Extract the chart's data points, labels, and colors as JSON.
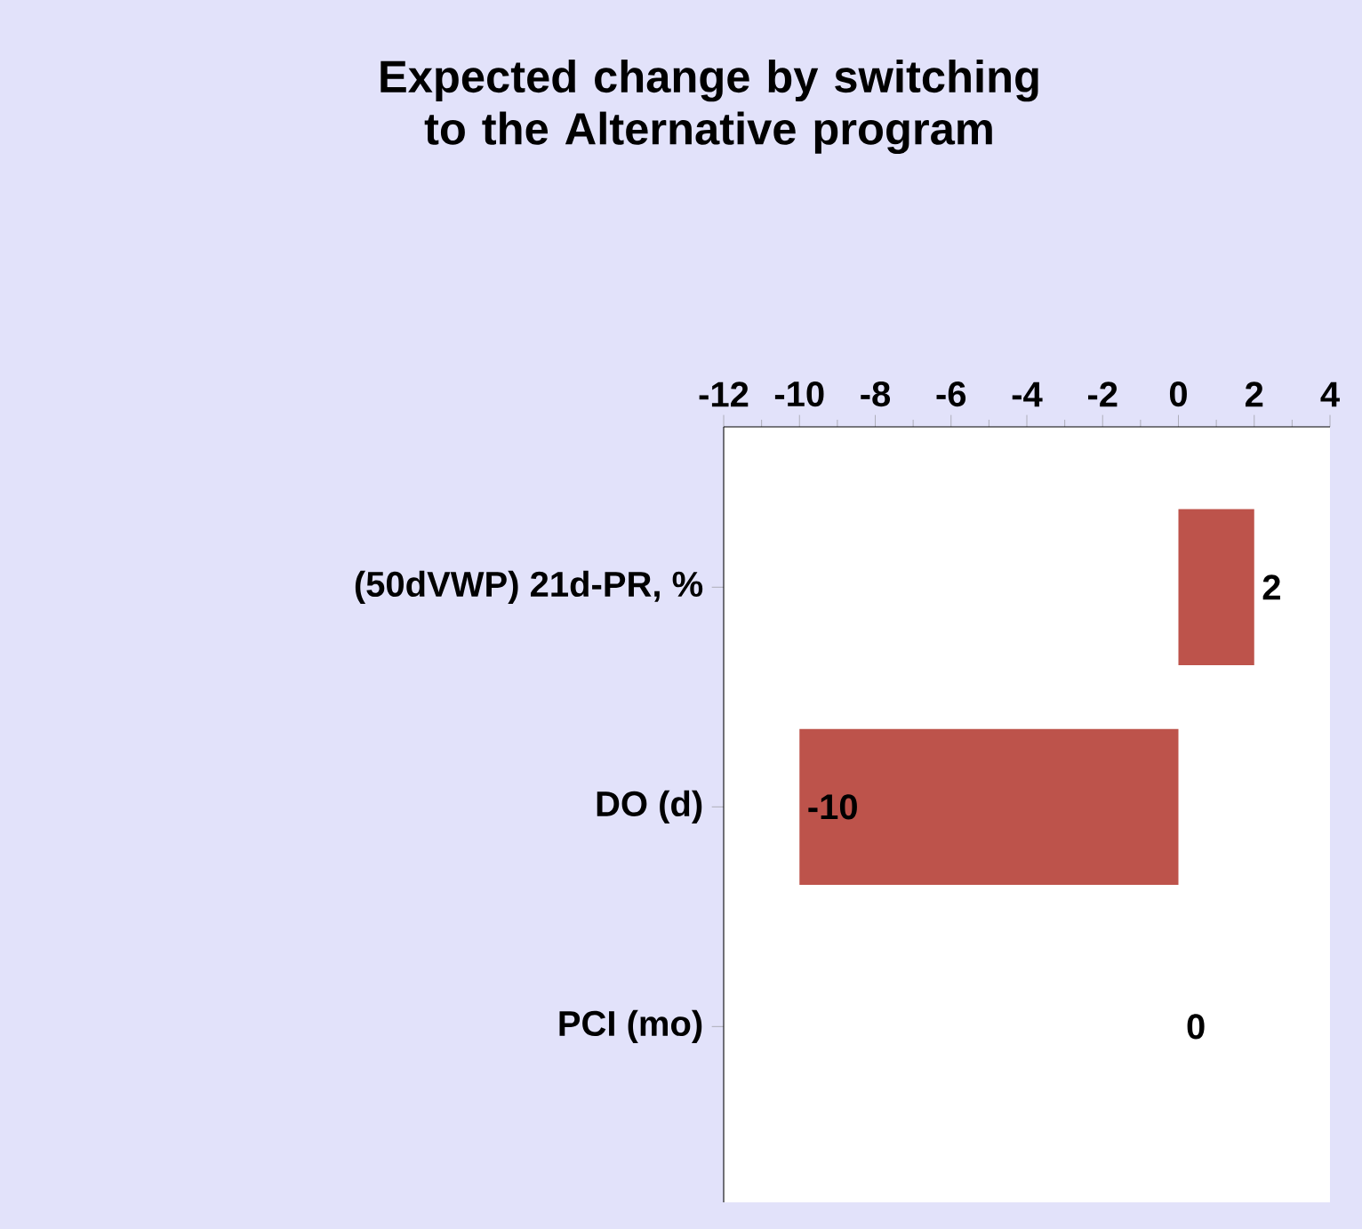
{
  "chart_data": {
    "type": "bar",
    "orientation": "horizontal",
    "title": "Expected change by switching to the Alternative program",
    "categories": [
      "(50dVWP) 21d-PR, %",
      "DO (d)",
      "PCI (mo)"
    ],
    "values": [
      2,
      -10,
      0
    ],
    "color": "#bd534b",
    "data_labels": true,
    "xlim": [
      -12,
      4
    ],
    "xticks": [
      -12,
      -10,
      -8,
      -6,
      -4,
      -2,
      0,
      2,
      4
    ]
  }
}
